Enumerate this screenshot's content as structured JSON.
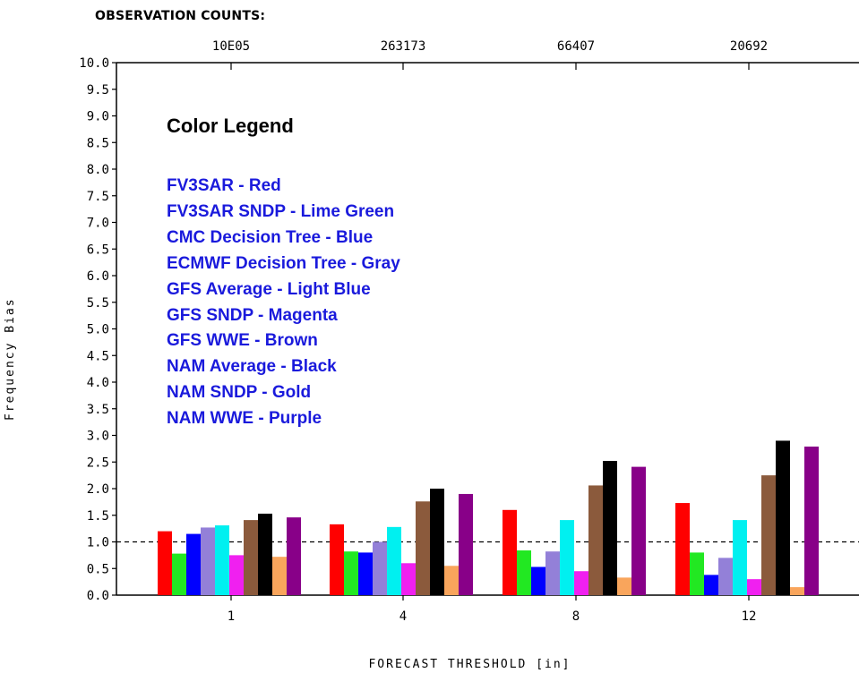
{
  "title": "OBSERVATION COUNTS:",
  "observation_counts": [
    "10E05",
    "263173",
    "66407",
    "20692"
  ],
  "legend": {
    "title": "Color Legend",
    "items": [
      "FV3SAR - Red",
      "FV3SAR SNDP - Lime Green",
      "CMC Decision Tree - Blue",
      "ECMWF Decision Tree - Gray",
      "GFS Average - Light Blue",
      "GFS SNDP - Magenta",
      "GFS WWE - Brown",
      "NAM Average - Black",
      "NAM SNDP - Gold",
      "NAM WWE - Purple"
    ]
  },
  "colors": [
    "#ff0000",
    "#22e822",
    "#0000ff",
    "#9380d8",
    "#00f0f0",
    "#f020f0",
    "#8b5a3c",
    "#000000",
    "#f9a55c",
    "#880088"
  ],
  "chart_data": {
    "type": "bar",
    "xlabel": "FORECAST THRESHOLD [in]",
    "ylabel": "Frequency Bias",
    "categories": [
      "1",
      "4",
      "8",
      "12"
    ],
    "ylim": [
      0,
      10
    ],
    "yticks": [
      "0.0",
      "0.5",
      "1.0",
      "1.5",
      "2.0",
      "2.5",
      "3.0",
      "3.5",
      "4.0",
      "4.5",
      "5.0",
      "5.5",
      "6.0",
      "6.5",
      "7.0",
      "7.5",
      "8.0",
      "8.5",
      "9.0",
      "9.5",
      "10.0"
    ],
    "reference_line": 1.0,
    "series": [
      {
        "values": [
          1.2,
          1.33,
          1.6,
          1.73
        ]
      },
      {
        "values": [
          0.78,
          0.82,
          0.84,
          0.8
        ]
      },
      {
        "values": [
          1.15,
          0.8,
          0.53,
          0.38
        ]
      },
      {
        "values": [
          1.27,
          1.0,
          0.82,
          0.7
        ]
      },
      {
        "values": [
          1.31,
          1.28,
          1.41,
          1.41
        ]
      },
      {
        "values": [
          0.75,
          0.6,
          0.45,
          0.3
        ]
      },
      {
        "values": [
          1.41,
          1.76,
          2.06,
          2.25
        ]
      },
      {
        "values": [
          1.53,
          2.0,
          2.52,
          2.9
        ]
      },
      {
        "values": [
          0.72,
          0.55,
          0.33,
          0.15
        ]
      },
      {
        "values": [
          1.46,
          1.9,
          2.41,
          2.79
        ]
      }
    ]
  }
}
